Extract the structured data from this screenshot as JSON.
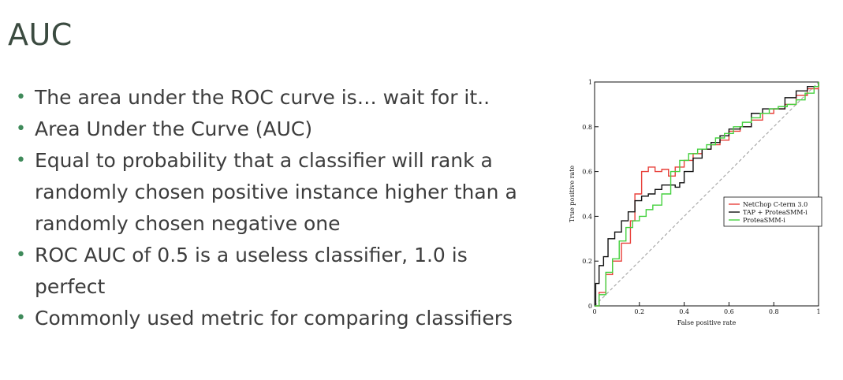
{
  "slide": {
    "title": "AUC",
    "bullets": [
      "The area under the ROC curve is… wait for it..",
      "Area Under the Curve (AUC)",
      "Equal to probability that a classifier will rank a randomly chosen positive instance higher than a randomly chosen negative one",
      "ROC AUC of 0.5 is a useless classifier, 1.0 is perfect",
      "Commonly used metric for comparing classifiers"
    ]
  },
  "chart_data": {
    "type": "line",
    "title": "",
    "xlabel": "False positive rate",
    "ylabel": "True positive rate",
    "xlim": [
      0,
      1
    ],
    "ylim": [
      0,
      1
    ],
    "x_ticks": [
      "0",
      "0.2",
      "0.4",
      "0.6",
      "0.8",
      "1"
    ],
    "y_ticks": [
      "0",
      "0.2",
      "0.4",
      "0.6",
      "0.8",
      "1"
    ],
    "grid": false,
    "legend_position": "right",
    "diagonal": {
      "x": [
        0,
        1
      ],
      "y": [
        0,
        1
      ],
      "color": "#9a9a9a",
      "dashed": true
    },
    "series": [
      {
        "name": "NetChop C-term 3.0",
        "color": "#e8403a",
        "x": [
          0,
          0.02,
          0.05,
          0.08,
          0.12,
          0.16,
          0.18,
          0.21,
          0.24,
          0.27,
          0.3,
          0.33,
          0.36,
          0.4,
          0.44,
          0.48,
          0.52,
          0.56,
          0.6,
          0.65,
          0.7,
          0.75,
          0.8,
          0.85,
          0.9,
          0.95,
          1
        ],
        "y": [
          0,
          0.06,
          0.14,
          0.2,
          0.28,
          0.38,
          0.5,
          0.6,
          0.62,
          0.6,
          0.61,
          0.58,
          0.62,
          0.65,
          0.68,
          0.7,
          0.72,
          0.74,
          0.78,
          0.8,
          0.83,
          0.86,
          0.88,
          0.9,
          0.94,
          0.97,
          1
        ]
      },
      {
        "name": "TAP + ProteaSMM-i",
        "color": "#111111",
        "x": [
          0,
          0.005,
          0.02,
          0.04,
          0.06,
          0.09,
          0.12,
          0.15,
          0.18,
          0.21,
          0.24,
          0.27,
          0.3,
          0.33,
          0.36,
          0.38,
          0.4,
          0.44,
          0.48,
          0.52,
          0.56,
          0.6,
          0.65,
          0.7,
          0.75,
          0.8,
          0.85,
          0.9,
          0.95,
          1
        ],
        "y": [
          0,
          0.1,
          0.18,
          0.22,
          0.3,
          0.33,
          0.38,
          0.42,
          0.47,
          0.49,
          0.5,
          0.52,
          0.54,
          0.54,
          0.53,
          0.55,
          0.6,
          0.66,
          0.7,
          0.73,
          0.76,
          0.79,
          0.8,
          0.86,
          0.88,
          0.88,
          0.93,
          0.96,
          0.98,
          1
        ]
      },
      {
        "name": "ProteaSMM-i",
        "color": "#45d13f",
        "x": [
          0,
          0.02,
          0.05,
          0.08,
          0.11,
          0.14,
          0.17,
          0.2,
          0.23,
          0.26,
          0.3,
          0.34,
          0.38,
          0.42,
          0.46,
          0.5,
          0.54,
          0.58,
          0.62,
          0.66,
          0.7,
          0.74,
          0.78,
          0.82,
          0.86,
          0.9,
          0.94,
          0.98,
          1
        ],
        "y": [
          0,
          0.05,
          0.15,
          0.21,
          0.29,
          0.35,
          0.38,
          0.4,
          0.43,
          0.45,
          0.5,
          0.6,
          0.65,
          0.68,
          0.7,
          0.72,
          0.75,
          0.77,
          0.8,
          0.82,
          0.84,
          0.86,
          0.88,
          0.89,
          0.9,
          0.92,
          0.95,
          0.98,
          1
        ]
      }
    ]
  }
}
